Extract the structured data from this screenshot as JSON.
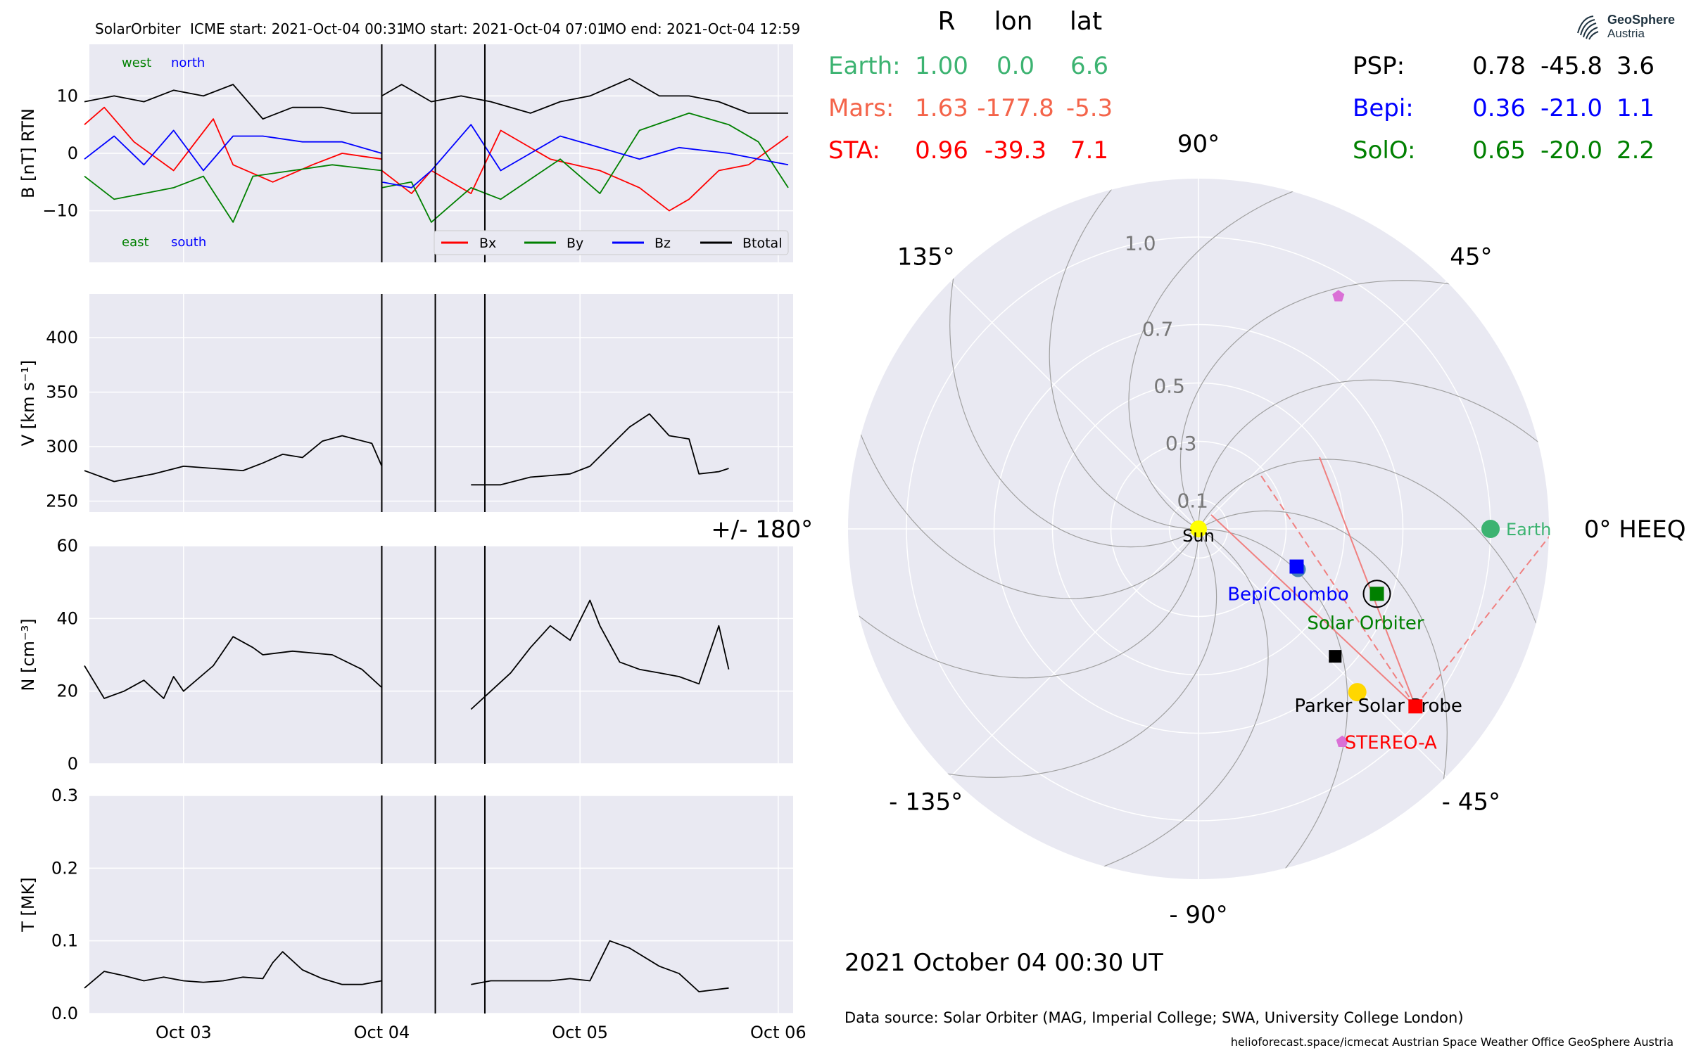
{
  "header": {
    "spacecraft": "SolarOrbiter",
    "icme_start": "ICME start: 2021-Oct-04 00:31",
    "mo_start": "MO start: 2021-Oct-04 07:01",
    "mo_end": "MO end: 2021-Oct-04 12:59"
  },
  "logo": {
    "name": "GeoSphere",
    "sub": "Austria"
  },
  "colors": {
    "plot_bg": "#e9e9f2",
    "bx": "#ff0000",
    "by": "#008000",
    "bz": "#0000ff",
    "btotal": "#000000",
    "earth": "#3cb371",
    "mars": "#f4644a",
    "sta": "#ff0000",
    "bepi": "#0000ff",
    "solo": "#008000",
    "psp_marker": "#ffd700",
    "sun": "#ffff00",
    "pentagon": "#da70d6",
    "cme_line": "#f08080"
  },
  "chart_data": [
    {
      "type": "line",
      "panel": "magnetic_field",
      "ylabel": "B [nT] RTN",
      "ylim": [
        -19,
        19
      ],
      "yticks": [
        "10",
        "0",
        "−10"
      ],
      "ytick_values": [
        10,
        0,
        -10
      ],
      "direction_labels": {
        "top_left": "west",
        "top_right": "north",
        "bottom_left": "east",
        "bottom_right": "south"
      },
      "series": [
        {
          "name": "Bx",
          "color": "#ff0000",
          "points": [
            [
              0,
              5
            ],
            [
              0.2,
              8
            ],
            [
              0.5,
              2
            ],
            [
              0.9,
              -3
            ],
            [
              1.3,
              6
            ],
            [
              1.5,
              -2
            ],
            [
              1.9,
              -5
            ],
            [
              2.3,
              -2
            ],
            [
              2.6,
              0
            ],
            [
              3.0,
              -1
            ],
            [
              3.0,
              -3
            ],
            [
              3.3,
              -7
            ],
            [
              3.5,
              -3
            ],
            [
              3.9,
              -7
            ],
            [
              4.2,
              4
            ],
            [
              4.7,
              -1
            ],
            [
              5.2,
              -3
            ],
            [
              5.6,
              -6
            ],
            [
              5.9,
              -10
            ],
            [
              6.1,
              -8
            ],
            [
              6.4,
              -3
            ],
            [
              6.7,
              -2
            ],
            [
              7.1,
              3
            ]
          ]
        },
        {
          "name": "By",
          "color": "#008000",
          "points": [
            [
              0,
              -4
            ],
            [
              0.3,
              -8
            ],
            [
              0.6,
              -7
            ],
            [
              0.9,
              -6
            ],
            [
              1.2,
              -4
            ],
            [
              1.5,
              -12
            ],
            [
              1.7,
              -4
            ],
            [
              2.1,
              -3
            ],
            [
              2.5,
              -2
            ],
            [
              3.0,
              -3
            ],
            [
              3.0,
              -6
            ],
            [
              3.3,
              -5
            ],
            [
              3.5,
              -12
            ],
            [
              3.9,
              -6
            ],
            [
              4.2,
              -8
            ],
            [
              4.8,
              -1
            ],
            [
              5.2,
              -7
            ],
            [
              5.6,
              4
            ],
            [
              6.1,
              7
            ],
            [
              6.5,
              5
            ],
            [
              6.8,
              2
            ],
            [
              7.1,
              -6
            ]
          ]
        },
        {
          "name": "Bz",
          "color": "#0000ff",
          "points": [
            [
              0,
              -1
            ],
            [
              0.3,
              3
            ],
            [
              0.6,
              -2
            ],
            [
              0.9,
              4
            ],
            [
              1.2,
              -3
            ],
            [
              1.5,
              3
            ],
            [
              1.8,
              3
            ],
            [
              2.2,
              2
            ],
            [
              2.6,
              2
            ],
            [
              3.0,
              0
            ],
            [
              3.0,
              -5
            ],
            [
              3.3,
              -6
            ],
            [
              3.5,
              -3
            ],
            [
              3.9,
              5
            ],
            [
              4.2,
              -3
            ],
            [
              4.8,
              3
            ],
            [
              5.2,
              1
            ],
            [
              5.6,
              -1
            ],
            [
              6.0,
              1
            ],
            [
              6.5,
              0
            ],
            [
              6.8,
              -1
            ],
            [
              7.1,
              -2
            ]
          ]
        },
        {
          "name": "Btotal",
          "color": "#000000",
          "points": [
            [
              0,
              9
            ],
            [
              0.3,
              10
            ],
            [
              0.6,
              9
            ],
            [
              0.9,
              11
            ],
            [
              1.2,
              10
            ],
            [
              1.5,
              12
            ],
            [
              1.8,
              6
            ],
            [
              2.1,
              8
            ],
            [
              2.4,
              8
            ],
            [
              2.7,
              7
            ],
            [
              3.0,
              7
            ],
            [
              3.0,
              10
            ],
            [
              3.2,
              12
            ],
            [
              3.5,
              9
            ],
            [
              3.8,
              10
            ],
            [
              4.1,
              9
            ],
            [
              4.5,
              7
            ],
            [
              4.8,
              9
            ],
            [
              5.1,
              10
            ],
            [
              5.5,
              13
            ],
            [
              5.8,
              10
            ],
            [
              6.1,
              10
            ],
            [
              6.4,
              9
            ],
            [
              6.7,
              7
            ],
            [
              7.1,
              7
            ]
          ]
        }
      ]
    },
    {
      "type": "line",
      "panel": "speed",
      "ylabel": "V [km s⁻¹]",
      "ylim": [
        240,
        440
      ],
      "yticks": [
        "400",
        "350",
        "300",
        "250"
      ],
      "ytick_values": [
        400,
        350,
        300,
        250
      ],
      "series": [
        {
          "name": "",
          "color": "#000000",
          "segments": [
            [
              [
                0,
                278
              ],
              [
                0.3,
                268
              ],
              [
                0.7,
                275
              ],
              [
                1.0,
                282
              ],
              [
                1.3,
                280
              ],
              [
                1.6,
                278
              ],
              [
                1.8,
                285
              ],
              [
                2.0,
                293
              ],
              [
                2.2,
                290
              ],
              [
                2.4,
                305
              ],
              [
                2.6,
                310
              ],
              [
                2.9,
                303
              ],
              [
                3.0,
                282
              ]
            ],
            [
              [
                3.9,
                265
              ],
              [
                4.2,
                265
              ],
              [
                4.5,
                272
              ],
              [
                4.9,
                275
              ],
              [
                5.1,
                282
              ],
              [
                5.3,
                300
              ],
              [
                5.5,
                318
              ],
              [
                5.7,
                330
              ],
              [
                5.9,
                310
              ],
              [
                6.1,
                307
              ],
              [
                6.2,
                275
              ],
              [
                6.4,
                277
              ],
              [
                6.5,
                280
              ]
            ]
          ]
        }
      ]
    },
    {
      "type": "line",
      "panel": "density",
      "ylabel": "N [cm⁻³]",
      "ylim": [
        0,
        60
      ],
      "yticks": [
        "60",
        "40",
        "20",
        "0"
      ],
      "ytick_values": [
        60,
        40,
        20,
        0
      ],
      "series": [
        {
          "name": "",
          "color": "#000000",
          "segments": [
            [
              [
                0,
                27
              ],
              [
                0.2,
                18
              ],
              [
                0.4,
                20
              ],
              [
                0.6,
                23
              ],
              [
                0.8,
                18
              ],
              [
                0.9,
                24
              ],
              [
                1.0,
                20
              ],
              [
                1.3,
                27
              ],
              [
                1.5,
                35
              ],
              [
                1.7,
                32
              ],
              [
                1.8,
                30
              ],
              [
                2.1,
                31
              ],
              [
                2.5,
                30
              ],
              [
                2.8,
                26
              ],
              [
                3.0,
                21
              ]
            ],
            [
              [
                3.9,
                15
              ],
              [
                4.1,
                20
              ],
              [
                4.3,
                25
              ],
              [
                4.5,
                32
              ],
              [
                4.7,
                38
              ],
              [
                4.9,
                34
              ],
              [
                5.1,
                45
              ],
              [
                5.2,
                38
              ],
              [
                5.4,
                28
              ],
              [
                5.6,
                26
              ],
              [
                5.8,
                25
              ],
              [
                6.0,
                24
              ],
              [
                6.2,
                22
              ],
              [
                6.4,
                38
              ],
              [
                6.5,
                26
              ]
            ]
          ]
        }
      ]
    },
    {
      "type": "line",
      "panel": "temperature",
      "ylabel": "T [MK]",
      "ylim": [
        0,
        0.3
      ],
      "yticks": [
        "0.3",
        "0.2",
        "0.1",
        "0.0"
      ],
      "ytick_values": [
        0.3,
        0.2,
        0.1,
        0.0
      ],
      "xticks": [
        "Oct 03",
        "Oct 04",
        "Oct 05",
        "Oct 06"
      ],
      "xtick_values": [
        1,
        3,
        5,
        7
      ],
      "xlim": [
        0.05,
        7.15
      ],
      "event_lines_x": [
        3.0,
        3.54,
        4.04
      ],
      "series": [
        {
          "name": "",
          "color": "#000000",
          "segments": [
            [
              [
                0,
                0.035
              ],
              [
                0.2,
                0.058
              ],
              [
                0.4,
                0.052
              ],
              [
                0.6,
                0.045
              ],
              [
                0.8,
                0.05
              ],
              [
                1.0,
                0.045
              ],
              [
                1.2,
                0.043
              ],
              [
                1.4,
                0.045
              ],
              [
                1.6,
                0.05
              ],
              [
                1.8,
                0.048
              ],
              [
                1.9,
                0.07
              ],
              [
                2.0,
                0.085
              ],
              [
                2.2,
                0.06
              ],
              [
                2.4,
                0.048
              ],
              [
                2.6,
                0.04
              ],
              [
                2.8,
                0.04
              ],
              [
                3.0,
                0.045
              ]
            ],
            [
              [
                3.9,
                0.04
              ],
              [
                4.1,
                0.045
              ],
              [
                4.4,
                0.045
              ],
              [
                4.7,
                0.045
              ],
              [
                4.9,
                0.048
              ],
              [
                5.1,
                0.045
              ],
              [
                5.3,
                0.1
              ],
              [
                5.5,
                0.09
              ],
              [
                5.8,
                0.065
              ],
              [
                6.0,
                0.055
              ],
              [
                6.2,
                0.03
              ],
              [
                6.5,
                0.035
              ]
            ]
          ]
        }
      ]
    },
    {
      "type": "scatter",
      "panel": "polar_positions",
      "radial_ticks": [
        "0.1",
        "0.3",
        "0.5",
        "0.7",
        "1.0"
      ],
      "radial_tick_values": [
        0.1,
        0.3,
        0.5,
        0.7,
        1.0
      ],
      "r_max": 1.2,
      "angle_labels": [
        {
          "text": "0° HEEQ",
          "angle": 0
        },
        {
          "text": "45°",
          "angle": 45
        },
        {
          "text": "90°",
          "angle": 90
        },
        {
          "text": "135°",
          "angle": 135
        },
        {
          "text": "+/- 180°",
          "angle": 180
        },
        {
          "text": "- 135°",
          "angle": -135
        },
        {
          "text": "- 90°",
          "angle": -90
        },
        {
          "text": "- 45°",
          "angle": -45
        }
      ],
      "bodies": [
        {
          "name": "Sun",
          "r": 0.0,
          "lon": 0.0,
          "color": "#ffff00",
          "marker": "circle"
        },
        {
          "name": "Earth",
          "r": 1.0,
          "lon": 0.0,
          "color": "#3cb371",
          "marker": "circle"
        },
        {
          "name": "BepiColombo",
          "r": 0.36,
          "lon": -21.0,
          "color": "#0000ff",
          "marker": "square"
        },
        {
          "name": "Solar Orbiter",
          "r": 0.65,
          "lon": -20.0,
          "color": "#008000",
          "marker": "square"
        },
        {
          "name": "Parker Solar Probe",
          "r": 0.78,
          "lon": -45.8,
          "color": "#ffd700",
          "marker": "circle"
        },
        {
          "name": "STEREO-A",
          "r": 0.96,
          "lon": -39.3,
          "color": "#ff0000",
          "marker": "square"
        }
      ],
      "unlabeled_markers": [
        {
          "r": 0.64,
          "lon": -43.0,
          "color": "#000000",
          "marker": "square"
        },
        {
          "r": 0.93,
          "lon": 59.0,
          "color": "#da70d6",
          "marker": "pentagon"
        },
        {
          "r": 0.88,
          "lon": -56.0,
          "color": "#da70d6",
          "marker": "pentagon"
        }
      ]
    }
  ],
  "position_table": {
    "headers": {
      "r": "R",
      "lon": "lon",
      "lat": "lat"
    },
    "left_rows": [
      {
        "name": "Earth:",
        "r": "1.00",
        "lon": "0.0",
        "lat": "6.6",
        "color": "#3cb371"
      },
      {
        "name": "Mars:",
        "r": "1.63",
        "lon": "-177.8",
        "lat": "-5.3",
        "color": "#f4644a"
      },
      {
        "name": "STA:",
        "r": "0.96",
        "lon": "-39.3",
        "lat": "7.1",
        "color": "#ff0000"
      }
    ],
    "right_rows": [
      {
        "name": "PSP:",
        "r": "0.78",
        "lon": "-45.8",
        "lat": "3.6",
        "color": "#000000"
      },
      {
        "name": "Bepi:",
        "r": "0.36",
        "lon": "-21.0",
        "lat": "1.1",
        "color": "#0000ff"
      },
      {
        "name": "SolO:",
        "r": "0.65",
        "lon": "-20.0",
        "lat": "2.2",
        "color": "#008000"
      }
    ]
  },
  "date_label": "2021 October 04  00:30 UT",
  "data_source": "Data source: Solar Orbiter (MAG, Imperial College; SWA, University College London)",
  "footer": "helioforecast.space/icmecat   Austrian Space Weather Office   GeoSphere Austria"
}
